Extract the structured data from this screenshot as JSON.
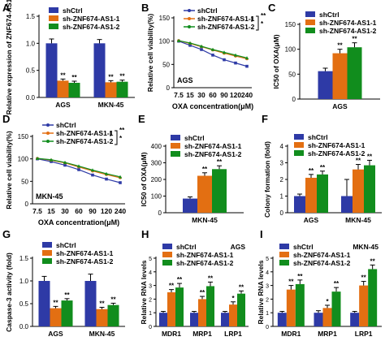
{
  "colors": {
    "shCtrl": "#2e3aa6",
    "AS1_1": "#e36f12",
    "AS1_2": "#118d1d",
    "black": "#000000"
  },
  "legend_labels": [
    "shCtrl",
    "sh-ZNF674-AS1-1",
    "sh-ZNF674-AS1-2"
  ],
  "chart_data": [
    {
      "panel": "A",
      "type": "bar",
      "categories": [
        "AGS",
        "MKN-45"
      ],
      "ylabel": "Relative expression of ZNF674-AS1",
      "ylim": [
        0,
        1.5
      ],
      "yticks": [
        "0.0",
        "0.5",
        "1.0",
        "1.5"
      ],
      "series": [
        {
          "name": "shCtrl",
          "values": [
            1.0,
            1.0
          ],
          "errors": [
            0.08,
            0.07
          ]
        },
        {
          "name": "sh-ZNF674-AS1-1",
          "values": [
            0.31,
            0.28
          ],
          "errors": [
            0.03,
            0.03
          ]
        },
        {
          "name": "sh-ZNF674-AS1-2",
          "values": [
            0.27,
            0.29
          ],
          "errors": [
            0.03,
            0.03
          ]
        }
      ],
      "significance": [
        [
          "",
          "**",
          "**"
        ],
        [
          "",
          "**",
          "**"
        ]
      ]
    },
    {
      "panel": "B",
      "type": "line",
      "subtitle": "AGS",
      "ylabel": "Relative cell viability(%)",
      "xlabel": "OXA concentration(μM)",
      "categories": [
        "7.5",
        "15",
        "30",
        "60",
        "90",
        "120",
        "240"
      ],
      "ylim": [
        0,
        150
      ],
      "yticks": [
        "0",
        "50",
        "100",
        "150"
      ],
      "series": [
        {
          "name": "shCtrl",
          "values": [
            100,
            91,
            82,
            70,
            60,
            53,
            46
          ]
        },
        {
          "name": "sh-ZNF674-AS1-1",
          "values": [
            101,
            95,
            88,
            81,
            74,
            68,
            62
          ]
        },
        {
          "name": "sh-ZNF674-AS1-2",
          "values": [
            101,
            96,
            89,
            82,
            76,
            70,
            64
          ]
        }
      ],
      "significance": [
        "**",
        "*"
      ]
    },
    {
      "panel": "C",
      "type": "bar",
      "categories": [
        "AGS"
      ],
      "ylabel": "IC50 of OXA(μM)",
      "ylim": [
        0,
        150
      ],
      "yticks": [
        "0",
        "50",
        "100",
        "150"
      ],
      "series": [
        {
          "name": "shCtrl",
          "values": [
            56
          ],
          "errors": [
            6
          ]
        },
        {
          "name": "sh-ZNF674-AS1-1",
          "values": [
            92
          ],
          "errors": [
            8
          ]
        },
        {
          "name": "sh-ZNF674-AS1-2",
          "values": [
            104
          ],
          "errors": [
            9
          ]
        }
      ],
      "significance": [
        [
          "",
          "**",
          "**"
        ]
      ]
    },
    {
      "panel": "D",
      "type": "line",
      "subtitle": "MKN-45",
      "ylabel": "Relative cell viability(%)",
      "xlabel": "OXA concentration(μM)",
      "categories": [
        "7.5",
        "15",
        "30",
        "60",
        "90",
        "120",
        "240"
      ],
      "ylim": [
        0,
        150
      ],
      "yticks": [
        "0",
        "50",
        "100",
        "150"
      ],
      "series": [
        {
          "name": "shCtrl",
          "values": [
            100,
            94,
            86,
            76,
            64,
            55,
            47
          ]
        },
        {
          "name": "sh-ZNF674-AS1-1",
          "values": [
            101,
            97,
            91,
            82,
            73,
            65,
            58
          ]
        },
        {
          "name": "sh-ZNF674-AS1-2",
          "values": [
            101,
            98,
            92,
            84,
            75,
            67,
            60
          ]
        }
      ],
      "significance": [
        "**",
        "*"
      ]
    },
    {
      "panel": "E",
      "type": "bar",
      "categories": [
        "MKN-45"
      ],
      "ylabel": "IC50 of OXA(μM)",
      "ylim": [
        0,
        400
      ],
      "yticks": [
        "0",
        "100",
        "200",
        "300",
        "400"
      ],
      "series": [
        {
          "name": "shCtrl",
          "values": [
            85
          ],
          "errors": [
            10
          ]
        },
        {
          "name": "sh-ZNF674-AS1-1",
          "values": [
            222
          ],
          "errors": [
            18
          ]
        },
        {
          "name": "sh-ZNF674-AS1-2",
          "values": [
            262
          ],
          "errors": [
            20
          ]
        }
      ],
      "significance": [
        [
          "",
          "**",
          "**"
        ]
      ]
    },
    {
      "panel": "F",
      "type": "bar",
      "categories": [
        "AGS",
        "MKN-45"
      ],
      "ylabel": "Colony formation (fold)",
      "ylim": [
        0,
        4
      ],
      "yticks": [
        "0",
        "1",
        "2",
        "3",
        "4"
      ],
      "series": [
        {
          "name": "shCtrl",
          "values": [
            1.0,
            1.0
          ],
          "errors": [
            0.12,
            1.0
          ]
        },
        {
          "name": "sh-ZNF674-AS1-1",
          "values": [
            2.1,
            2.6
          ],
          "errors": [
            0.2,
            0.3
          ]
        },
        {
          "name": "sh-ZNF674-AS1-2",
          "values": [
            2.3,
            2.85
          ],
          "errors": [
            0.2,
            0.3
          ]
        }
      ],
      "significance": [
        [
          "",
          "**",
          "**"
        ],
        [
          "",
          "**",
          "**"
        ]
      ]
    },
    {
      "panel": "G",
      "type": "bar",
      "categories": [
        "AGS",
        "MKN-45"
      ],
      "ylabel": "Caspase-3 activity (fold)",
      "ylim": [
        0,
        1.5
      ],
      "yticks": [
        "0.0",
        "0.5",
        "1.0",
        "1.5"
      ],
      "series": [
        {
          "name": "shCtrl",
          "values": [
            1.0,
            1.0
          ],
          "errors": [
            0.1,
            0.15
          ]
        },
        {
          "name": "sh-ZNF674-AS1-1",
          "values": [
            0.4,
            0.38
          ],
          "errors": [
            0.04,
            0.04
          ]
        },
        {
          "name": "sh-ZNF674-AS1-2",
          "values": [
            0.57,
            0.47
          ],
          "errors": [
            0.04,
            0.04
          ]
        }
      ],
      "significance": [
        [
          "",
          "**",
          "**"
        ],
        [
          "",
          "**",
          "**"
        ]
      ]
    },
    {
      "panel": "H",
      "type": "bar",
      "subtitle": "AGS",
      "categories": [
        "MDR1",
        "MRP1",
        "LRP1"
      ],
      "ylabel": "Relative RNA levels",
      "ylim": [
        0,
        5
      ],
      "yticks": [
        "0",
        "1",
        "2",
        "3",
        "4",
        "5"
      ],
      "series": [
        {
          "name": "shCtrl",
          "values": [
            1.0,
            1.0,
            1.0
          ],
          "errors": [
            0.1,
            0.1,
            0.1
          ]
        },
        {
          "name": "sh-ZNF674-AS1-1",
          "values": [
            2.5,
            2.0,
            1.6
          ],
          "errors": [
            0.2,
            0.2,
            0.2
          ]
        },
        {
          "name": "sh-ZNF674-AS1-2",
          "values": [
            2.85,
            2.95,
            2.4
          ],
          "errors": [
            0.3,
            0.3,
            0.2
          ]
        }
      ],
      "significance": [
        [
          "",
          "**",
          "**"
        ],
        [
          "",
          "**",
          "**"
        ],
        [
          "",
          "*",
          "**"
        ]
      ]
    },
    {
      "panel": "I",
      "type": "bar",
      "subtitle": "MKN-45",
      "categories": [
        "MDR1",
        "MRP1",
        "LRP1"
      ],
      "ylabel": "Relative RNA levels",
      "ylim": [
        0,
        5
      ],
      "yticks": [
        "0",
        "1",
        "2",
        "3",
        "4",
        "5"
      ],
      "series": [
        {
          "name": "shCtrl",
          "values": [
            1.0,
            1.0,
            1.0
          ],
          "errors": [
            0.1,
            0.15,
            0.1
          ]
        },
        {
          "name": "sh-ZNF674-AS1-1",
          "values": [
            2.7,
            1.35,
            3.0
          ],
          "errors": [
            0.3,
            0.2,
            0.3
          ]
        },
        {
          "name": "sh-ZNF674-AS1-2",
          "values": [
            3.1,
            2.55,
            4.2
          ],
          "errors": [
            0.3,
            0.3,
            0.3
          ]
        }
      ],
      "significance": [
        [
          "",
          "**",
          "**"
        ],
        [
          "",
          "*",
          "**"
        ],
        [
          "",
          "**",
          "**"
        ]
      ]
    }
  ]
}
